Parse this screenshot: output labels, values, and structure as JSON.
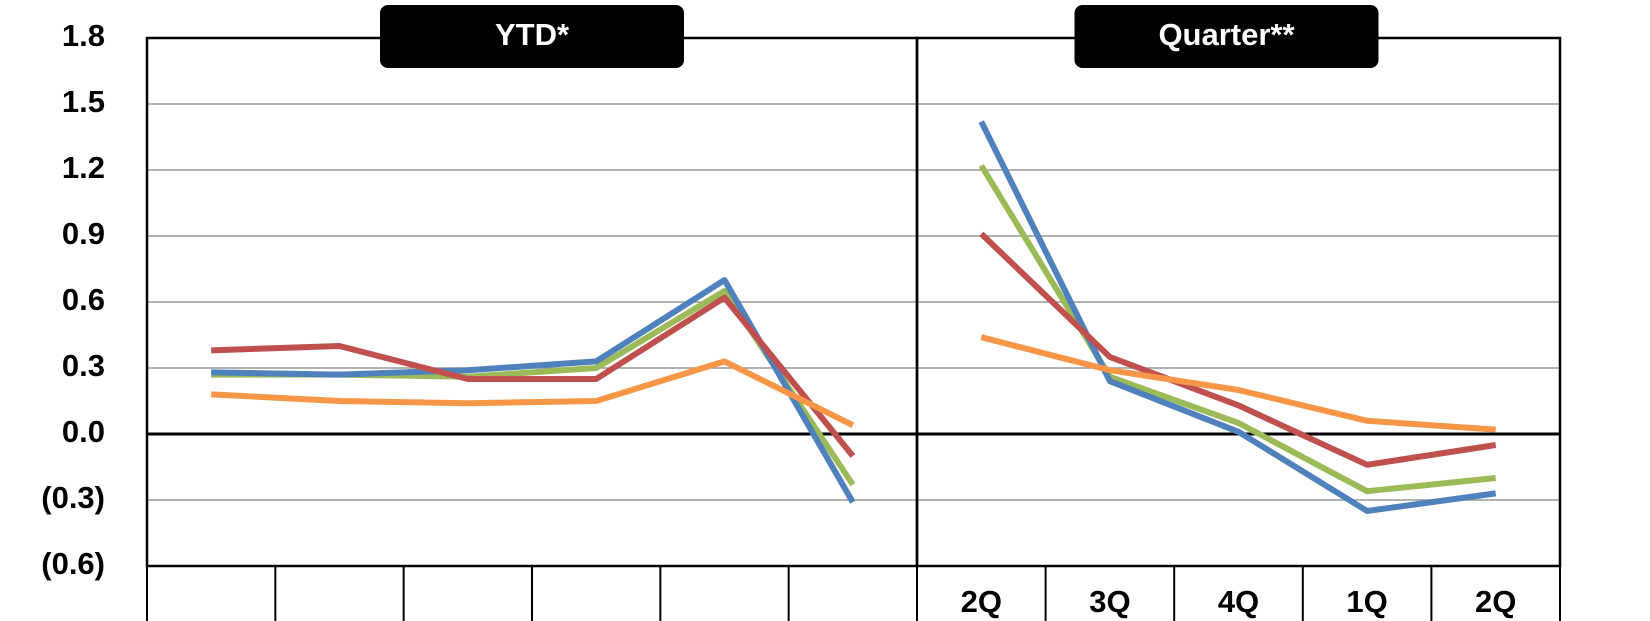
{
  "chart_data": [
    {
      "type": "line",
      "title": "YTD*",
      "categories": [
        null,
        null,
        null,
        null,
        null,
        null
      ],
      "series": [
        {
          "color": "#9bbb59",
          "values": [
            0.27,
            0.27,
            0.26,
            0.3,
            0.65,
            -0.23
          ]
        },
        {
          "color": "#4f81bd",
          "values": [
            0.28,
            0.27,
            0.29,
            0.33,
            0.7,
            -0.31
          ]
        },
        {
          "color": "#c0504d",
          "values": [
            0.38,
            0.4,
            0.25,
            0.25,
            0.62,
            -0.1
          ]
        },
        {
          "color": "#f79646",
          "values": [
            0.18,
            0.15,
            0.14,
            0.15,
            0.33,
            0.04
          ]
        }
      ],
      "ylim": [
        -0.6,
        1.8
      ],
      "yticks": [
        1.8,
        1.5,
        1.2,
        0.9,
        0.6,
        0.3,
        {
          "value": 0,
          "label": "0.0"
        },
        {
          "value": -0.3,
          "label": "(0.3)"
        },
        {
          "value": -0.6,
          "label": "(0.6)"
        }
      ],
      "grid": true
    },
    {
      "type": "line",
      "title": "Quarter**",
      "categories": [
        "2Q",
        "3Q",
        "4Q",
        "1Q",
        "2Q"
      ],
      "series": [
        {
          "color": "#9bbb59",
          "values": [
            1.22,
            0.26,
            0.05,
            -0.26,
            -0.2
          ]
        },
        {
          "color": "#4f81bd",
          "values": [
            1.42,
            0.24,
            0.01,
            -0.35,
            -0.27
          ]
        },
        {
          "color": "#c0504d",
          "values": [
            0.91,
            0.35,
            0.13,
            -0.14,
            -0.05
          ]
        },
        {
          "color": "#f79646",
          "values": [
            0.44,
            0.29,
            0.2,
            0.06,
            0.02
          ]
        }
      ],
      "ylim": [
        -0.6,
        1.8
      ],
      "yticks": [
        1.8,
        1.5,
        1.2,
        0.9,
        0.6,
        0.3,
        {
          "value": 0,
          "label": "0.0"
        },
        {
          "value": -0.3,
          "label": "(0.3)"
        },
        {
          "value": -0.6,
          "label": "(0.6)"
        }
      ],
      "grid": true
    }
  ]
}
